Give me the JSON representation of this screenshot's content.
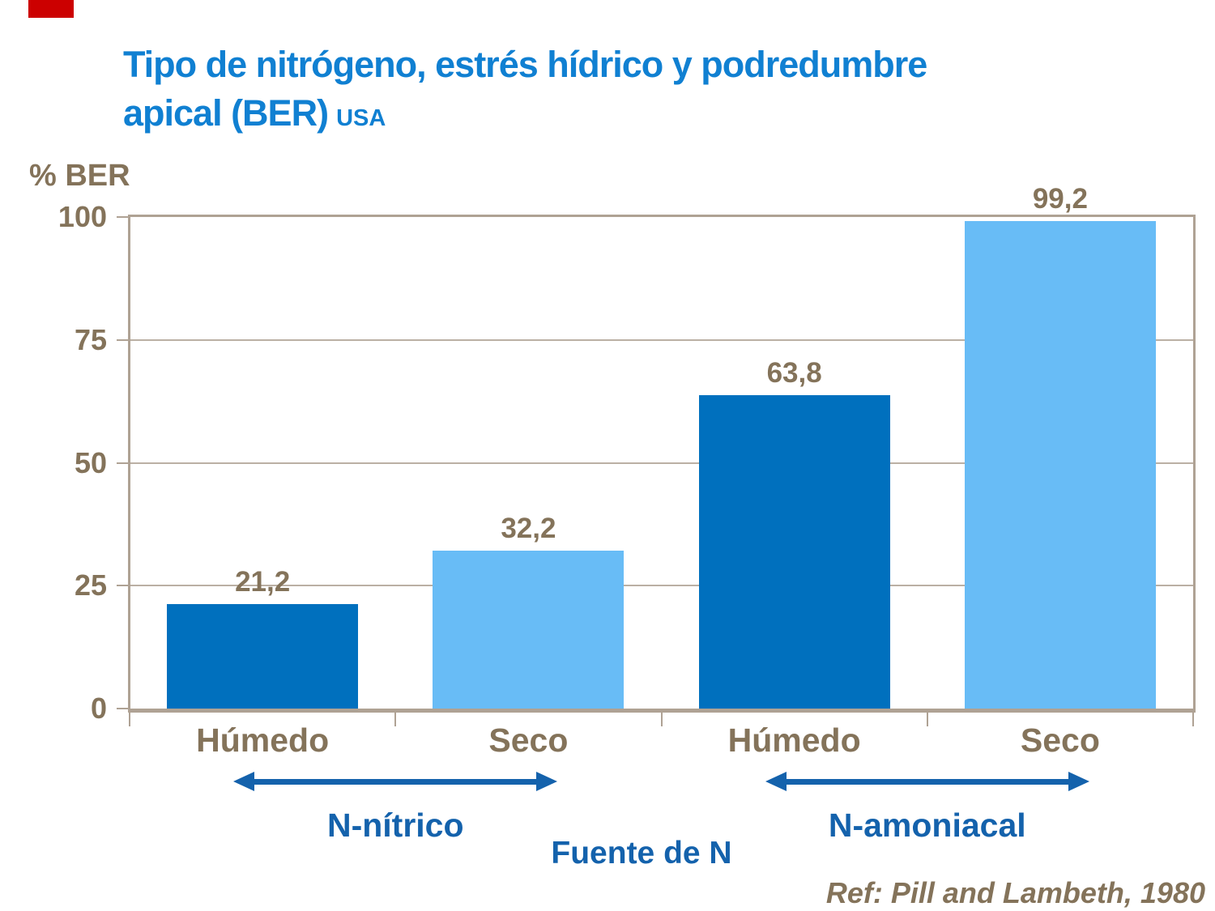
{
  "slide": {
    "title": {
      "line1": "Tipo de nitrógeno, estrés hídrico y podredumbre",
      "line2": "apical (BER)",
      "suffix": "USA"
    },
    "footer": {
      "reference": "Ref: Pill and Lambeth, 1980"
    }
  },
  "colors": {
    "title_blue": "#1080D2",
    "bar_dark_blue": "#0070BE",
    "bar_light_blue": "#68BCF6",
    "text_brown": "#84735A",
    "axis_taupe": "#AFA294",
    "accent_blue": "#1462AC",
    "flag_red": "#CC0000",
    "background": "#FFFFFF"
  },
  "chart_data": {
    "type": "bar",
    "title": "Tipo de nitrógeno, estrés hídrico y podredumbre apical (BER) USA",
    "ylabel": "% BER",
    "xlabel": "Fuente de N",
    "ylim": [
      0,
      100
    ],
    "y_ticks": [
      0,
      25,
      50,
      75,
      100
    ],
    "grid": true,
    "legend": false,
    "categories": [
      "Húmedo",
      "Seco",
      "Húmedo",
      "Seco"
    ],
    "values": [
      21.2,
      32.2,
      63.8,
      99.2
    ],
    "value_labels": [
      "21,2",
      "32,2",
      "63,8",
      "99,2"
    ],
    "bar_color_keys": [
      "bar_dark_blue",
      "bar_light_blue",
      "bar_dark_blue",
      "bar_light_blue"
    ],
    "groups": [
      {
        "label": "N-nítrico",
        "categories": [
          0,
          1
        ]
      },
      {
        "label": "N-amoniacal",
        "categories": [
          2,
          3
        ]
      }
    ]
  }
}
